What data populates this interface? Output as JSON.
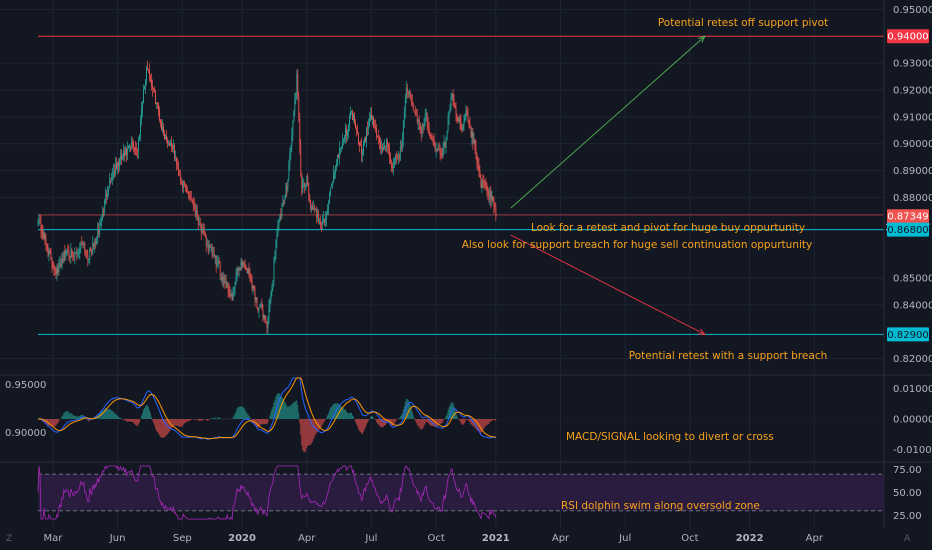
{
  "colors": {
    "background": "#131722",
    "grid": "#1f2433",
    "up_candle": "#26a69a",
    "down_candle": "#ef5350",
    "resistance_line": "#f23645",
    "support_line": "#00bcd4",
    "annotation_text": "#f7a21b",
    "arrow_up": "#4caf50",
    "arrow_down": "#f23645",
    "macd_line": "#2962ff",
    "signal_line": "#ff9800",
    "rsi_line": "#9c27b0",
    "rsi_band_fill": "#2a1c3e",
    "axis_text": "#b2b5be",
    "price_tag_text": "#ffffff"
  },
  "chart_data": [
    {
      "type": "candlestick",
      "panel": "price",
      "x_ticks": [
        "Mar",
        "Jun",
        "Sep",
        "2020",
        "Apr",
        "Jul",
        "Oct",
        "2021",
        "Apr",
        "Jul",
        "Oct",
        "2022",
        "Apr"
      ],
      "x_tick_positions_index": [
        3,
        16,
        29,
        41,
        54,
        67,
        80,
        92,
        105,
        118,
        131,
        143,
        156
      ],
      "y_ticks": [
        "0.95000",
        "0.93000",
        "0.92000",
        "0.91000",
        "0.90000",
        "0.89000",
        "0.88000",
        "0.85000",
        "0.84000",
        "0.82000"
      ],
      "y_tick_values": [
        0.95,
        0.93,
        0.92,
        0.91,
        0.9,
        0.89,
        0.88,
        0.85,
        0.84,
        0.82
      ],
      "ylim": [
        0.815,
        0.952
      ],
      "xlim": [
        0,
        170
      ],
      "grid": true,
      "horizontal_levels": [
        {
          "value": 0.94,
          "label": "0.94000",
          "style": "resistance"
        },
        {
          "value": 0.873,
          "label": "0.87349",
          "style": "current"
        },
        {
          "value": 0.8705,
          "label": "20:27:57",
          "style": "timer"
        },
        {
          "value": 0.868,
          "label": "0.86800",
          "style": "support"
        },
        {
          "value": 0.829,
          "label": "0.82900",
          "style": "support"
        }
      ],
      "level_lines": [
        {
          "value": 0.94,
          "style": "resistance"
        },
        {
          "value": 0.87349,
          "style": "current"
        },
        {
          "value": 0.868,
          "style": "support"
        },
        {
          "value": 0.829,
          "style": "support"
        }
      ],
      "closes_weekly": [
        0.872,
        0.866,
        0.86,
        0.855,
        0.852,
        0.858,
        0.861,
        0.857,
        0.86,
        0.864,
        0.858,
        0.861,
        0.866,
        0.874,
        0.884,
        0.889,
        0.892,
        0.895,
        0.897,
        0.9,
        0.897,
        0.917,
        0.929,
        0.921,
        0.914,
        0.905,
        0.901,
        0.899,
        0.891,
        0.885,
        0.882,
        0.879,
        0.873,
        0.867,
        0.862,
        0.859,
        0.855,
        0.851,
        0.847,
        0.842,
        0.852,
        0.856,
        0.853,
        0.848,
        0.84,
        0.838,
        0.832,
        0.846,
        0.868,
        0.875,
        0.885,
        0.903,
        0.925,
        0.882,
        0.886,
        0.875,
        0.874,
        0.87,
        0.873,
        0.885,
        0.894,
        0.9,
        0.905,
        0.912,
        0.906,
        0.897,
        0.904,
        0.91,
        0.904,
        0.898,
        0.9,
        0.892,
        0.894,
        0.898,
        0.922,
        0.915,
        0.91,
        0.905,
        0.91,
        0.901,
        0.899,
        0.895,
        0.902,
        0.918,
        0.912,
        0.906,
        0.912,
        0.904,
        0.897,
        0.885,
        0.884,
        0.88,
        0.874
      ],
      "annotations": [
        {
          "text": "Potential retest off support pivot"
        },
        {
          "text": "Look for a retest and pivot for huge buy oppurtunity"
        },
        {
          "text": "Also look for support breach for huge sell continuation oppurtunity"
        },
        {
          "text": "Potential retest with a support breach"
        }
      ],
      "arrows": [
        {
          "from": [
            95,
            0.876
          ],
          "to": [
            134,
            0.94
          ],
          "color": "arrow_up"
        },
        {
          "from": [
            95,
            0.866
          ],
          "to": [
            134,
            0.829
          ],
          "color": "arrow_down"
        }
      ]
    },
    {
      "type": "line",
      "panel": "macd",
      "y_ticks": [
        "0.01000",
        "0.00000",
        "-0.01000"
      ],
      "y_tick_values": [
        0.01,
        0.0,
        -0.01
      ],
      "left_ticks": [
        "0.95000",
        "0.90000"
      ],
      "ylim": [
        -0.0135,
        0.0135
      ],
      "series": [
        {
          "color": "macd_line"
        },
        {
          "color": "signal_line"
        }
      ],
      "annotation": "MACD/SIGNAL looking to divert or cross"
    },
    {
      "type": "line",
      "panel": "rsi",
      "y_ticks": [
        "75.00",
        "50.00",
        "25.00"
      ],
      "y_tick_values": [
        75,
        50,
        25
      ],
      "ylim": [
        20,
        80
      ],
      "band": [
        30,
        70
      ],
      "series": [
        {
          "color": "rsi_line"
        }
      ],
      "annotation": "RSI dolphin swim along oversold zone"
    }
  ],
  "footer": {
    "left_icon_label": "Z",
    "right_icon_label": "A"
  }
}
